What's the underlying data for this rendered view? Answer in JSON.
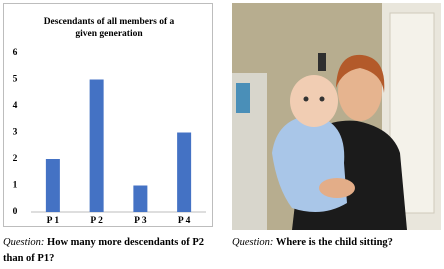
{
  "chart_data": {
    "type": "bar",
    "title": "Descendants of all members of a given generation",
    "categories": [
      "P 1",
      "P 2",
      "P 3",
      "P 4"
    ],
    "values": [
      2,
      5,
      1,
      3
    ],
    "color": "#4472c4",
    "ylim": [
      0,
      6
    ],
    "yticks": [
      0,
      1,
      2,
      3,
      4,
      5,
      6
    ],
    "grid": false
  },
  "captions": [
    {
      "label": "Question:",
      "text": "How many more descendants of  P2 than of P1?"
    },
    {
      "label": "Question:",
      "text": "Where is the child sitting?"
    }
  ]
}
